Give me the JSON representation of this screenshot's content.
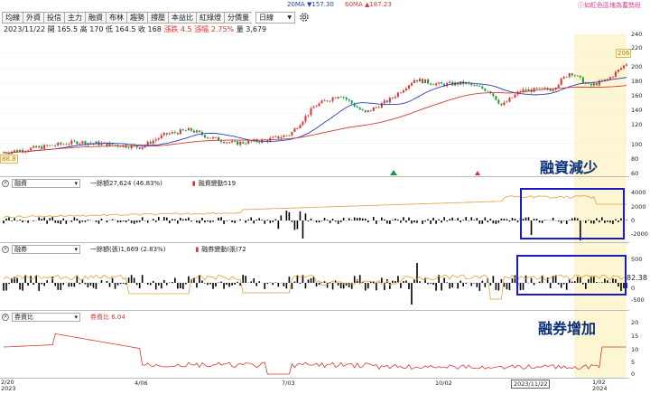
{
  "legend": {
    "ma20": "20MA ▼157.30",
    "ma60": "60MA ▲187.23",
    "hint": "如紅色區塊為蓄勢段"
  },
  "tabs": [
    "均線",
    "外資",
    "投信",
    "主力",
    "融資",
    "布林",
    "趨勢",
    "撐壓",
    "本益比",
    "紅綠燈",
    "分價量"
  ],
  "period_select": "日線",
  "quote": {
    "date": "2023/11/22",
    "open": "開 165.5",
    "high": "高 170",
    "low": "低 164.5",
    "close": "收 168",
    "change": "漲跌 4.5",
    "pct": "漲幅 2.75%",
    "volume": "量 3,679"
  },
  "price_axis": {
    "ticks": [
      "240",
      "220",
      "200",
      "180",
      "160",
      "140",
      "120",
      "100",
      "80",
      "60"
    ]
  },
  "price_tags": {
    "high": "206",
    "low": "88.8"
  },
  "margin_pane": {
    "select": "融資",
    "legend1": "一餘額27,624 (46.83%)",
    "legend2": "融資變動519",
    "ticks": [
      "4000",
      "2000",
      "0",
      "-2000"
    ],
    "annotation": "融資減少"
  },
  "short_pane": {
    "select": "融券",
    "legend1": "一餘額(張)1,669 (2.83%)",
    "legend2": "融券變動(張)72",
    "ticks": [
      "500",
      "82.38",
      "0",
      "-500"
    ],
    "annotation": "融券增加"
  },
  "ratio_pane": {
    "select": "券資比",
    "legend1": "券資比 6.04",
    "ticks": [
      "20",
      "15",
      "10",
      "5",
      "0"
    ]
  },
  "xaxis": {
    "left": "2/20\n2023",
    "labels": [
      "4/06",
      "7/03",
      "10/02"
    ],
    "cursor_date": "2023/11/22",
    "right": "1/02\n2024"
  },
  "colors": {
    "up": "#e0302f",
    "down": "#1a9a3a",
    "ma20": "#2a3fb0",
    "ma60": "#d23a3a",
    "balance": "#e0a040",
    "highlight": "#fdf6d2"
  }
}
